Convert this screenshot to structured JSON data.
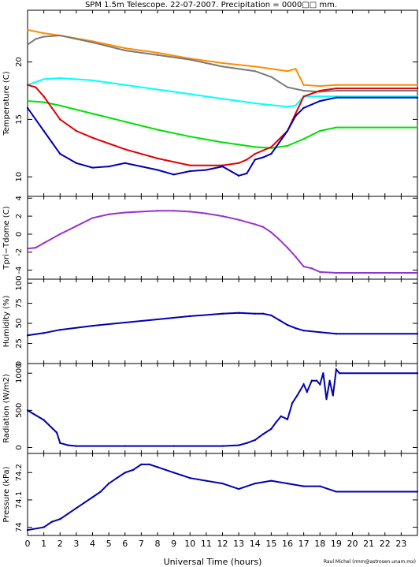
{
  "title": "SPM 1.5m Telescope. 22-07-2007. Precipitation = 0000□□ mm.",
  "xlabel": "Universal Time (hours)",
  "credit": "Raul Michel (rmm@astrosen.unam.mx)",
  "x_ticks": [
    "0",
    "1",
    "2",
    "3",
    "4",
    "5",
    "6",
    "7",
    "8",
    "9",
    "10",
    "11",
    "12",
    "13",
    "14",
    "15",
    "16",
    "17",
    "18",
    "19",
    "20",
    "21",
    "22",
    "23"
  ],
  "chart_data": [
    {
      "type": "line",
      "ylabel": "Temperature (C)",
      "xlim": [
        0,
        24
      ],
      "ylim": [
        8.3,
        24.5
      ],
      "yticks": [
        10,
        15,
        20
      ],
      "series": [
        {
          "color": "#ff8c00",
          "x": [
            0,
            1,
            2,
            4,
            6,
            8,
            10,
            12,
            14,
            15,
            16,
            16.5,
            17,
            18,
            19,
            24
          ],
          "y": [
            22.8,
            22.5,
            22.3,
            21.8,
            21.2,
            20.8,
            20.3,
            19.9,
            19.6,
            19.4,
            19.2,
            19.4,
            18.0,
            17.9,
            18.0,
            18.0
          ]
        },
        {
          "color": "#7a7a7a",
          "x": [
            0,
            0.5,
            1,
            2,
            4,
            6,
            8,
            10,
            12,
            14,
            15,
            16,
            17,
            18,
            19,
            24
          ],
          "y": [
            21.5,
            22.0,
            22.2,
            22.3,
            21.7,
            21.0,
            20.6,
            20.2,
            19.6,
            19.2,
            18.7,
            17.8,
            17.5,
            17.4,
            17.5,
            17.5
          ]
        },
        {
          "color": "#00ffff",
          "x": [
            0,
            1,
            2,
            4,
            6,
            8,
            10,
            12,
            14,
            16,
            16.5,
            17,
            18,
            19,
            24
          ],
          "y": [
            18.0,
            18.5,
            18.6,
            18.4,
            18.0,
            17.6,
            17.2,
            16.8,
            16.4,
            16.1,
            16.2,
            17.0,
            17.0,
            17.0,
            17.0
          ]
        },
        {
          "color": "#00e000",
          "x": [
            0,
            1,
            2,
            4,
            6,
            8,
            10,
            12,
            13,
            14,
            15,
            16,
            17,
            18,
            19,
            24
          ],
          "y": [
            16.6,
            16.5,
            16.2,
            15.5,
            14.8,
            14.1,
            13.5,
            13.0,
            12.8,
            12.6,
            12.5,
            12.7,
            13.3,
            14.0,
            14.3,
            14.3
          ]
        },
        {
          "color": "#e00000",
          "x": [
            0,
            0.5,
            1,
            1.5,
            2,
            3,
            4,
            5,
            6,
            8,
            10,
            12,
            13,
            13.5,
            14,
            15,
            16,
            16.5,
            17,
            18,
            19,
            24
          ],
          "y": [
            18.0,
            17.8,
            17.0,
            16.0,
            15.0,
            14.0,
            13.4,
            12.9,
            12.4,
            11.6,
            11.0,
            11.0,
            11.2,
            11.5,
            12.0,
            12.6,
            14.0,
            15.5,
            17.0,
            17.5,
            17.7,
            17.7
          ]
        },
        {
          "color": "#0000b0",
          "x": [
            0,
            0.5,
            1,
            1.5,
            2,
            3,
            4,
            5,
            6,
            7,
            8,
            9,
            10,
            11,
            12,
            13,
            13.5,
            14,
            14.5,
            15,
            15.5,
            16,
            16.5,
            17,
            18,
            19,
            24
          ],
          "y": [
            16.0,
            15.0,
            14.0,
            13.0,
            12.0,
            11.2,
            10.8,
            10.9,
            11.2,
            10.9,
            10.6,
            10.2,
            10.5,
            10.6,
            10.9,
            10.1,
            10.3,
            11.5,
            11.7,
            12.0,
            13.0,
            14.0,
            15.3,
            16.0,
            16.6,
            16.9,
            16.9
          ]
        }
      ]
    },
    {
      "type": "line",
      "ylabel": "Tpri−Tdome (C)",
      "xlim": [
        0,
        24
      ],
      "ylim": [
        -5,
        4.2
      ],
      "yticks": [
        -4,
        -2,
        0,
        2,
        4
      ],
      "series": [
        {
          "color": "#9932cc",
          "x": [
            0,
            0.5,
            1,
            2,
            3,
            4,
            5,
            6,
            7,
            8,
            9,
            10,
            11,
            12,
            13,
            14,
            14.5,
            15,
            15.5,
            16,
            16.5,
            17,
            17.5,
            18,
            19,
            24
          ],
          "y": [
            -1.6,
            -1.5,
            -1.0,
            0.0,
            0.9,
            1.8,
            2.2,
            2.4,
            2.5,
            2.6,
            2.6,
            2.5,
            2.3,
            2.0,
            1.6,
            1.1,
            0.8,
            0.2,
            -0.6,
            -1.5,
            -2.5,
            -3.6,
            -3.8,
            -4.2,
            -4.3,
            -4.3
          ]
        }
      ]
    },
    {
      "type": "line",
      "ylabel": "Humidity (%)",
      "xlim": [
        0,
        24
      ],
      "ylim": [
        0,
        105
      ],
      "yticks": [
        0,
        25,
        50,
        75,
        100
      ],
      "series": [
        {
          "color": "#0000b0",
          "x": [
            0,
            1,
            2,
            4,
            6,
            8,
            10,
            12,
            13,
            14,
            14.5,
            15,
            15.5,
            16,
            16.5,
            17,
            18,
            19,
            24
          ],
          "y": [
            35,
            38,
            42,
            47,
            51,
            55,
            59,
            62,
            63,
            62,
            62,
            60,
            54,
            48,
            44,
            41,
            39,
            37,
            37
          ]
        }
      ]
    },
    {
      "type": "scatter",
      "ylabel": "Radiation (W/m2)",
      "xlim": [
        0,
        24
      ],
      "ylim": [
        -80,
        1130
      ],
      "yticks": [
        0,
        500,
        1000
      ],
      "series": [
        {
          "color": "#0000b0",
          "x": [
            0,
            1,
            1.8,
            2,
            2.5,
            3,
            6,
            9,
            12,
            13,
            13.5,
            14,
            14.5,
            15,
            15.3,
            15.6,
            16,
            16.3,
            16.6,
            17,
            17.2,
            17.5,
            17.8,
            18,
            18.2,
            18.4,
            18.6,
            18.8,
            19,
            19.2,
            24
          ],
          "y": [
            500,
            370,
            200,
            60,
            30,
            20,
            20,
            20,
            20,
            30,
            60,
            100,
            180,
            250,
            340,
            420,
            380,
            600,
            700,
            850,
            750,
            900,
            900,
            850,
            1000,
            650,
            900,
            700,
            1050,
            1000,
            1000
          ]
        }
      ]
    },
    {
      "type": "scatter",
      "ylabel": "Pressure (kPa)",
      "xlim": [
        0,
        24
      ],
      "ylim": [
        73.97,
        74.27
      ],
      "yticks": [
        74,
        74.1,
        74.2
      ],
      "ytick_labels": [
        "74",
        "74.1",
        "74.2"
      ],
      "series": [
        {
          "color": "#0000b0",
          "x": [
            0,
            1,
            1.5,
            2,
            2.5,
            3,
            3.5,
            4,
            4.5,
            5,
            5.5,
            6,
            6.5,
            7,
            7.5,
            8,
            8.5,
            9,
            9.5,
            10,
            11,
            12,
            13,
            14,
            15,
            16,
            17,
            18,
            19,
            24
          ],
          "y": [
            73.99,
            74.0,
            74.02,
            74.03,
            74.05,
            74.07,
            74.09,
            74.11,
            74.13,
            74.16,
            74.18,
            74.2,
            74.21,
            74.23,
            74.23,
            74.22,
            74.21,
            74.2,
            74.19,
            74.18,
            74.17,
            74.16,
            74.14,
            74.16,
            74.17,
            74.16,
            74.15,
            74.15,
            74.13,
            74.13
          ]
        }
      ]
    }
  ]
}
